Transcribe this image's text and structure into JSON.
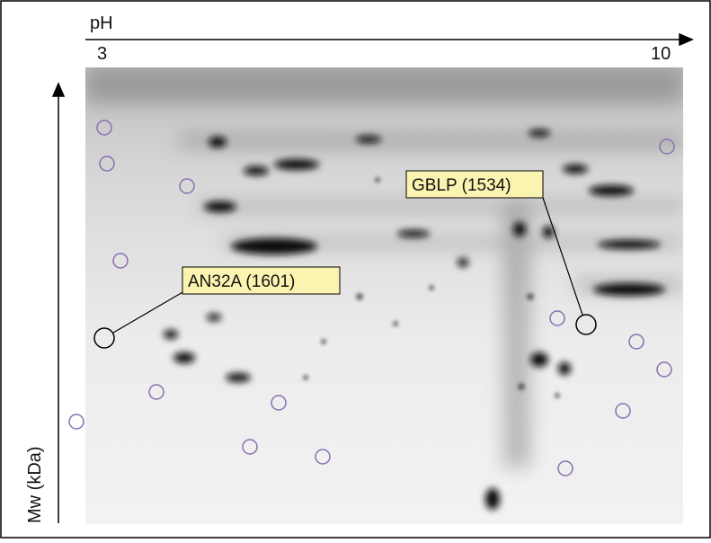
{
  "axes": {
    "x_label": "pH",
    "x_start": 3,
    "x_end": 10,
    "y_label": "Mw (kDa)"
  },
  "annotations": [
    {
      "label": "AN32A (1601)"
    },
    {
      "label": "GBLP (1534)"
    }
  ]
}
